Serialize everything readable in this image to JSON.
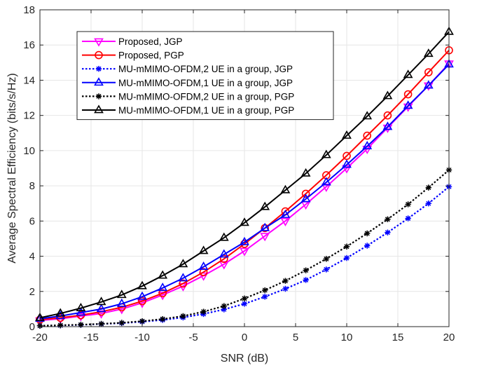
{
  "chart_data": {
    "type": "line",
    "title": "",
    "xlabel": "SNR (dB)",
    "ylabel": "Average Spectral Efficiency (bits/s/Hz)",
    "xlim": [
      -20,
      20
    ],
    "ylim": [
      0,
      18
    ],
    "xticks": [
      -20,
      -15,
      -10,
      -5,
      0,
      5,
      10,
      15,
      20
    ],
    "yticks": [
      0,
      2,
      4,
      6,
      8,
      10,
      12,
      14,
      16,
      18
    ],
    "grid": true,
    "legend_position": "upper-left",
    "x": [
      -20,
      -18,
      -16,
      -14,
      -12,
      -10,
      -8,
      -6,
      -4,
      -2,
      0,
      2,
      4,
      6,
      8,
      10,
      12,
      14,
      16,
      18,
      20
    ],
    "series": [
      {
        "name": "Proposed, JGP",
        "color": "#ff00ff",
        "line_style": "solid",
        "marker": "triangle-down",
        "values": [
          0.35,
          0.45,
          0.6,
          0.75,
          1.0,
          1.35,
          1.8,
          2.3,
          2.9,
          3.55,
          4.3,
          5.15,
          6.0,
          6.95,
          7.95,
          9.0,
          10.1,
          11.3,
          12.5,
          13.7,
          14.95
        ]
      },
      {
        "name": "Proposed, PGP",
        "color": "#ff0000",
        "line_style": "solid",
        "marker": "circle",
        "values": [
          0.4,
          0.5,
          0.65,
          0.85,
          1.1,
          1.45,
          1.9,
          2.45,
          3.1,
          3.85,
          4.7,
          5.6,
          6.55,
          7.55,
          8.6,
          9.7,
          10.85,
          12.0,
          13.2,
          14.45,
          15.7
        ]
      },
      {
        "name": "MU-mMIMO-OFDM,2 UE in a group, JGP",
        "color": "#0000ff",
        "line_style": "dotted",
        "marker": "asterisk",
        "values": [
          0.05,
          0.07,
          0.1,
          0.15,
          0.2,
          0.28,
          0.38,
          0.52,
          0.72,
          0.98,
          1.3,
          1.7,
          2.15,
          2.65,
          3.25,
          3.9,
          4.6,
          5.35,
          6.15,
          7.0,
          7.95
        ]
      },
      {
        "name": "MU-mMIMO-OFDM,1 UE in a group, JGP",
        "color": "#0000ff",
        "line_style": "solid",
        "marker": "triangle-up",
        "values": [
          0.45,
          0.6,
          0.8,
          1.0,
          1.3,
          1.7,
          2.2,
          2.75,
          3.4,
          4.1,
          4.8,
          5.6,
          6.35,
          7.25,
          8.2,
          9.2,
          10.25,
          11.35,
          12.55,
          13.7,
          14.9
        ]
      },
      {
        "name": "MU-mMIMO-OFDM,2 UE in a group, PGP",
        "color": "#000000",
        "line_style": "dotted",
        "marker": "asterisk",
        "values": [
          0.05,
          0.08,
          0.11,
          0.16,
          0.22,
          0.31,
          0.43,
          0.6,
          0.85,
          1.17,
          1.6,
          2.07,
          2.6,
          3.2,
          3.85,
          4.55,
          5.3,
          6.1,
          6.95,
          7.9,
          8.9
        ]
      },
      {
        "name": "MU-mMIMO-OFDM,1 UE in a group, PGP",
        "color": "#000000",
        "line_style": "solid",
        "marker": "triangle-up",
        "values": [
          0.5,
          0.75,
          1.05,
          1.4,
          1.8,
          2.3,
          2.9,
          3.55,
          4.3,
          5.05,
          5.9,
          6.8,
          7.75,
          8.7,
          9.75,
          10.85,
          11.95,
          13.1,
          14.3,
          15.5,
          16.75
        ]
      }
    ]
  }
}
